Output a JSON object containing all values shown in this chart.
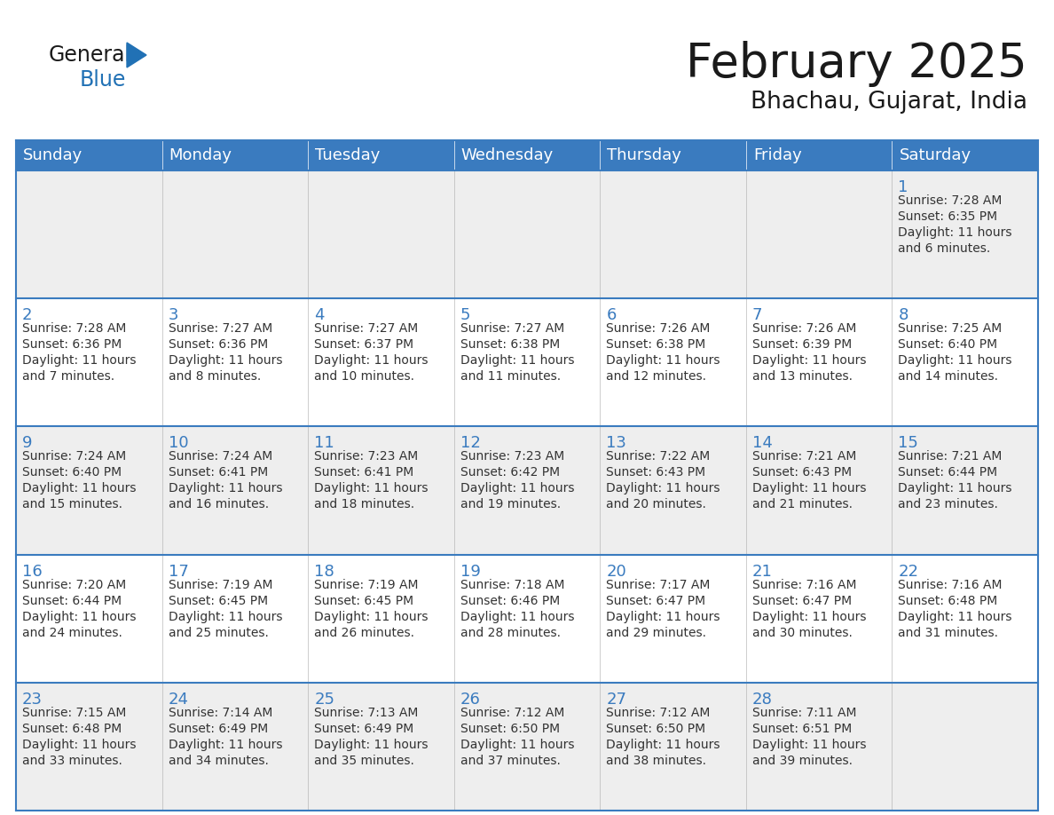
{
  "title": "February 2025",
  "subtitle": "Bhachau, Gujarat, India",
  "days_of_week": [
    "Sunday",
    "Monday",
    "Tuesday",
    "Wednesday",
    "Thursday",
    "Friday",
    "Saturday"
  ],
  "header_bg_color": "#3a7bbf",
  "header_text_color": "#ffffff",
  "row_bg_colors": [
    "#eeeeee",
    "#ffffff",
    "#eeeeee",
    "#ffffff",
    "#eeeeee"
  ],
  "day_num_color": "#3a7bbf",
  "info_text_color": "#333333",
  "border_color": "#3a7bbf",
  "calendar_data": [
    {
      "day": 1,
      "col": 6,
      "row": 0,
      "sunrise": "7:28 AM",
      "sunset": "6:35 PM",
      "daylight": "11 hours and 6 minutes."
    },
    {
      "day": 2,
      "col": 0,
      "row": 1,
      "sunrise": "7:28 AM",
      "sunset": "6:36 PM",
      "daylight": "11 hours and 7 minutes."
    },
    {
      "day": 3,
      "col": 1,
      "row": 1,
      "sunrise": "7:27 AM",
      "sunset": "6:36 PM",
      "daylight": "11 hours and 8 minutes."
    },
    {
      "day": 4,
      "col": 2,
      "row": 1,
      "sunrise": "7:27 AM",
      "sunset": "6:37 PM",
      "daylight": "11 hours and 10 minutes."
    },
    {
      "day": 5,
      "col": 3,
      "row": 1,
      "sunrise": "7:27 AM",
      "sunset": "6:38 PM",
      "daylight": "11 hours and 11 minutes."
    },
    {
      "day": 6,
      "col": 4,
      "row": 1,
      "sunrise": "7:26 AM",
      "sunset": "6:38 PM",
      "daylight": "11 hours and 12 minutes."
    },
    {
      "day": 7,
      "col": 5,
      "row": 1,
      "sunrise": "7:26 AM",
      "sunset": "6:39 PM",
      "daylight": "11 hours and 13 minutes."
    },
    {
      "day": 8,
      "col": 6,
      "row": 1,
      "sunrise": "7:25 AM",
      "sunset": "6:40 PM",
      "daylight": "11 hours and 14 minutes."
    },
    {
      "day": 9,
      "col": 0,
      "row": 2,
      "sunrise": "7:24 AM",
      "sunset": "6:40 PM",
      "daylight": "11 hours and 15 minutes."
    },
    {
      "day": 10,
      "col": 1,
      "row": 2,
      "sunrise": "7:24 AM",
      "sunset": "6:41 PM",
      "daylight": "11 hours and 16 minutes."
    },
    {
      "day": 11,
      "col": 2,
      "row": 2,
      "sunrise": "7:23 AM",
      "sunset": "6:41 PM",
      "daylight": "11 hours and 18 minutes."
    },
    {
      "day": 12,
      "col": 3,
      "row": 2,
      "sunrise": "7:23 AM",
      "sunset": "6:42 PM",
      "daylight": "11 hours and 19 minutes."
    },
    {
      "day": 13,
      "col": 4,
      "row": 2,
      "sunrise": "7:22 AM",
      "sunset": "6:43 PM",
      "daylight": "11 hours and 20 minutes."
    },
    {
      "day": 14,
      "col": 5,
      "row": 2,
      "sunrise": "7:21 AM",
      "sunset": "6:43 PM",
      "daylight": "11 hours and 21 minutes."
    },
    {
      "day": 15,
      "col": 6,
      "row": 2,
      "sunrise": "7:21 AM",
      "sunset": "6:44 PM",
      "daylight": "11 hours and 23 minutes."
    },
    {
      "day": 16,
      "col": 0,
      "row": 3,
      "sunrise": "7:20 AM",
      "sunset": "6:44 PM",
      "daylight": "11 hours and 24 minutes."
    },
    {
      "day": 17,
      "col": 1,
      "row": 3,
      "sunrise": "7:19 AM",
      "sunset": "6:45 PM",
      "daylight": "11 hours and 25 minutes."
    },
    {
      "day": 18,
      "col": 2,
      "row": 3,
      "sunrise": "7:19 AM",
      "sunset": "6:45 PM",
      "daylight": "11 hours and 26 minutes."
    },
    {
      "day": 19,
      "col": 3,
      "row": 3,
      "sunrise": "7:18 AM",
      "sunset": "6:46 PM",
      "daylight": "11 hours and 28 minutes."
    },
    {
      "day": 20,
      "col": 4,
      "row": 3,
      "sunrise": "7:17 AM",
      "sunset": "6:47 PM",
      "daylight": "11 hours and 29 minutes."
    },
    {
      "day": 21,
      "col": 5,
      "row": 3,
      "sunrise": "7:16 AM",
      "sunset": "6:47 PM",
      "daylight": "11 hours and 30 minutes."
    },
    {
      "day": 22,
      "col": 6,
      "row": 3,
      "sunrise": "7:16 AM",
      "sunset": "6:48 PM",
      "daylight": "11 hours and 31 minutes."
    },
    {
      "day": 23,
      "col": 0,
      "row": 4,
      "sunrise": "7:15 AM",
      "sunset": "6:48 PM",
      "daylight": "11 hours and 33 minutes."
    },
    {
      "day": 24,
      "col": 1,
      "row": 4,
      "sunrise": "7:14 AM",
      "sunset": "6:49 PM",
      "daylight": "11 hours and 34 minutes."
    },
    {
      "day": 25,
      "col": 2,
      "row": 4,
      "sunrise": "7:13 AM",
      "sunset": "6:49 PM",
      "daylight": "11 hours and 35 minutes."
    },
    {
      "day": 26,
      "col": 3,
      "row": 4,
      "sunrise": "7:12 AM",
      "sunset": "6:50 PM",
      "daylight": "11 hours and 37 minutes."
    },
    {
      "day": 27,
      "col": 4,
      "row": 4,
      "sunrise": "7:12 AM",
      "sunset": "6:50 PM",
      "daylight": "11 hours and 38 minutes."
    },
    {
      "day": 28,
      "col": 5,
      "row": 4,
      "sunrise": "7:11 AM",
      "sunset": "6:51 PM",
      "daylight": "11 hours and 39 minutes."
    }
  ]
}
